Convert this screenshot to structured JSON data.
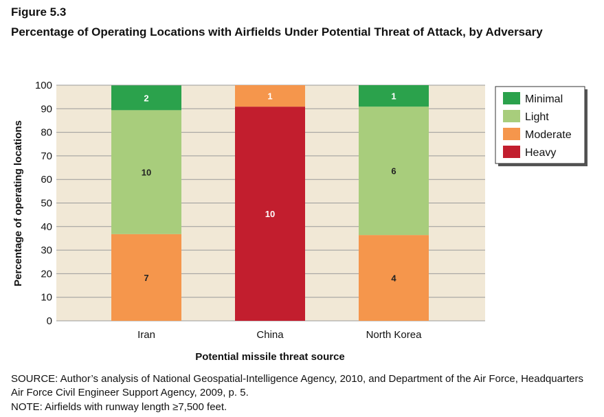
{
  "figure_label": "Figure 5.3",
  "figure_title": "Percentage of Operating Locations with Airfields Under Potential Threat of Attack, by Adversary",
  "source_text": "SOURCE: Author’s analysis of National Geospatial-Intelligence Agency, 2010, and Department of the Air Force, Headquarters Air Force Civil Engineer Support Agency, 2009, p. 5.",
  "note_text": "NOTE: Airfields with runway length ≥7,500 feet.",
  "colors": {
    "plot_background": "#f1e8d6",
    "gridline": "#9a9a9a",
    "Minimal": "#2ba24c",
    "Light": "#a8cd7c",
    "Moderate": "#f5964c",
    "Heavy": "#c21e2e",
    "label_light": "#ffffff",
    "label_dark": "#222222"
  },
  "chart_data": {
    "type": "bar",
    "stacked": true,
    "xlabel": "Potential missile threat source",
    "ylabel": "Percentage of operating locations",
    "ylim": [
      0,
      100
    ],
    "yticks": [
      0,
      10,
      20,
      30,
      40,
      50,
      60,
      70,
      80,
      90,
      100
    ],
    "grid": true,
    "legend_position": "top-right",
    "categories": [
      "Iran",
      "China",
      "North Korea"
    ],
    "series": [
      {
        "name": "Heavy",
        "counts": [
          0,
          10,
          0
        ],
        "percent": [
          0,
          90.9,
          0
        ]
      },
      {
        "name": "Moderate",
        "counts": [
          7,
          1,
          4
        ],
        "percent": [
          36.8,
          9.1,
          36.4
        ]
      },
      {
        "name": "Light",
        "counts": [
          10,
          0,
          6
        ],
        "percent": [
          52.6,
          0,
          54.5
        ]
      },
      {
        "name": "Minimal",
        "counts": [
          2,
          0,
          1
        ],
        "percent": [
          10.5,
          0,
          9.1
        ]
      }
    ],
    "legend_order": [
      "Minimal",
      "Light",
      "Moderate",
      "Heavy"
    ]
  }
}
